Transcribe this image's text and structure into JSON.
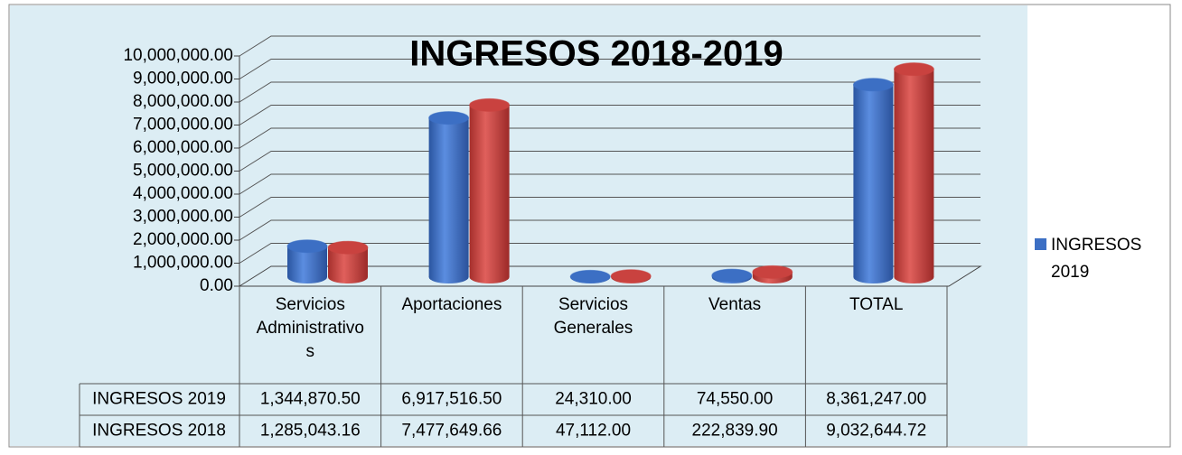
{
  "chart_data": {
    "type": "bar3d",
    "title": "INGRESOS 2018-2019",
    "categories": [
      "Servicios Administrativos",
      "Aportaciones",
      "Servicios Generales",
      "Ventas",
      "TOTAL"
    ],
    "series": [
      {
        "name": "INGRESOS 2019",
        "color": "#3c6fc4",
        "values": [
          1344870.5,
          6917516.5,
          24310,
          74550,
          8361247
        ],
        "value_labels": [
          "1,344,870.50",
          "6,917,516.50",
          "24,310.00",
          "74,550.00",
          "8,361,247.00"
        ]
      },
      {
        "name": "INGRESOS 2018",
        "color": "#c9423f",
        "values": [
          1285043.16,
          7477649.66,
          47112,
          222839.9,
          9032644.72
        ],
        "value_labels": [
          "1,285,043.16",
          "7,477,649.66",
          "47,112.00",
          "222,839.90",
          "9,032,644.72"
        ]
      }
    ],
    "ylim": [
      0,
      10000000
    ],
    "yticks": [
      {
        "value": 0,
        "label": "0.00"
      },
      {
        "value": 1000000,
        "label": "1,000,000.00"
      },
      {
        "value": 2000000,
        "label": "2,000,000.00"
      },
      {
        "value": 3000000,
        "label": "3,000,000.00"
      },
      {
        "value": 4000000,
        "label": "4,000,000.00"
      },
      {
        "value": 5000000,
        "label": "5,000,000.00"
      },
      {
        "value": 6000000,
        "label": "6,000,000.00"
      },
      {
        "value": 7000000,
        "label": "7,000,000.00"
      },
      {
        "value": 8000000,
        "label": "8,000,000.00"
      },
      {
        "value": 9000000,
        "label": "9,000,000.00"
      },
      {
        "value": 10000000,
        "label": "10,000,000.00"
      }
    ],
    "grid": true
  }
}
